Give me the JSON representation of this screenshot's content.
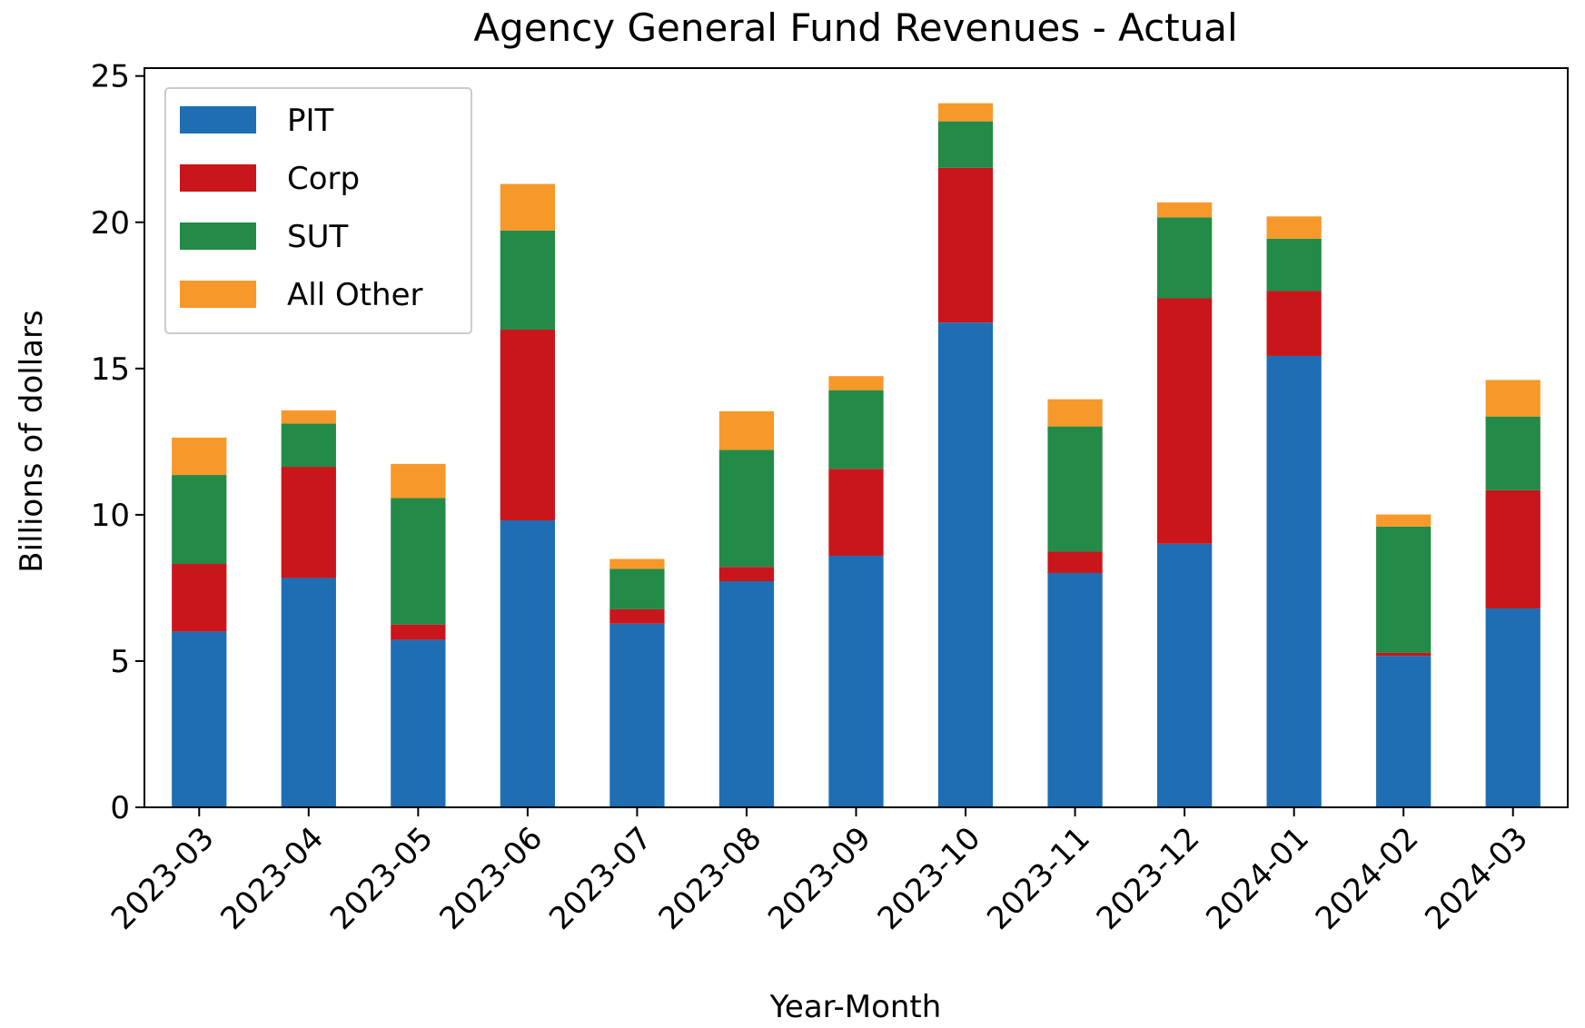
{
  "chart_data": {
    "type": "stacked_bar",
    "title": "Agency General Fund Revenues - Actual",
    "x_label": "Year-Month",
    "y_label": "Billions of dollars",
    "categories": [
      "2023-03",
      "2023-04",
      "2023-05",
      "2023-06",
      "2023-07",
      "2023-08",
      "2023-09",
      "2023-10",
      "2023-11",
      "2023-12",
      "2024-01",
      "2024-02",
      "2024-03"
    ],
    "series": [
      {
        "name": "PIT",
        "color": "#1f6eb4",
        "values": [
          6.01,
          7.84,
          5.73,
          9.81,
          6.28,
          7.73,
          8.6,
          16.57,
          8.01,
          9.01,
          15.43,
          5.18,
          6.8
        ]
      },
      {
        "name": "Corp",
        "color": "#c8161b",
        "values": [
          2.31,
          3.8,
          0.52,
          6.52,
          0.49,
          0.49,
          2.97,
          5.29,
          0.73,
          8.39,
          2.22,
          0.1,
          4.04
        ]
      },
      {
        "name": "SUT",
        "color": "#238a47",
        "values": [
          3.04,
          1.48,
          4.32,
          3.39,
          1.38,
          4.0,
          2.69,
          1.59,
          4.28,
          2.77,
          1.79,
          4.32,
          2.52
        ]
      },
      {
        "name": "All Other",
        "color": "#f7982a",
        "values": [
          1.28,
          0.45,
          1.17,
          1.59,
          0.34,
          1.32,
          0.48,
          0.62,
          0.93,
          0.51,
          0.76,
          0.41,
          1.25
        ]
      }
    ],
    "ylim": [
      0,
      25.27
    ],
    "yticks": [
      0,
      5,
      10,
      15,
      20,
      25
    ],
    "legend": "upper left"
  }
}
